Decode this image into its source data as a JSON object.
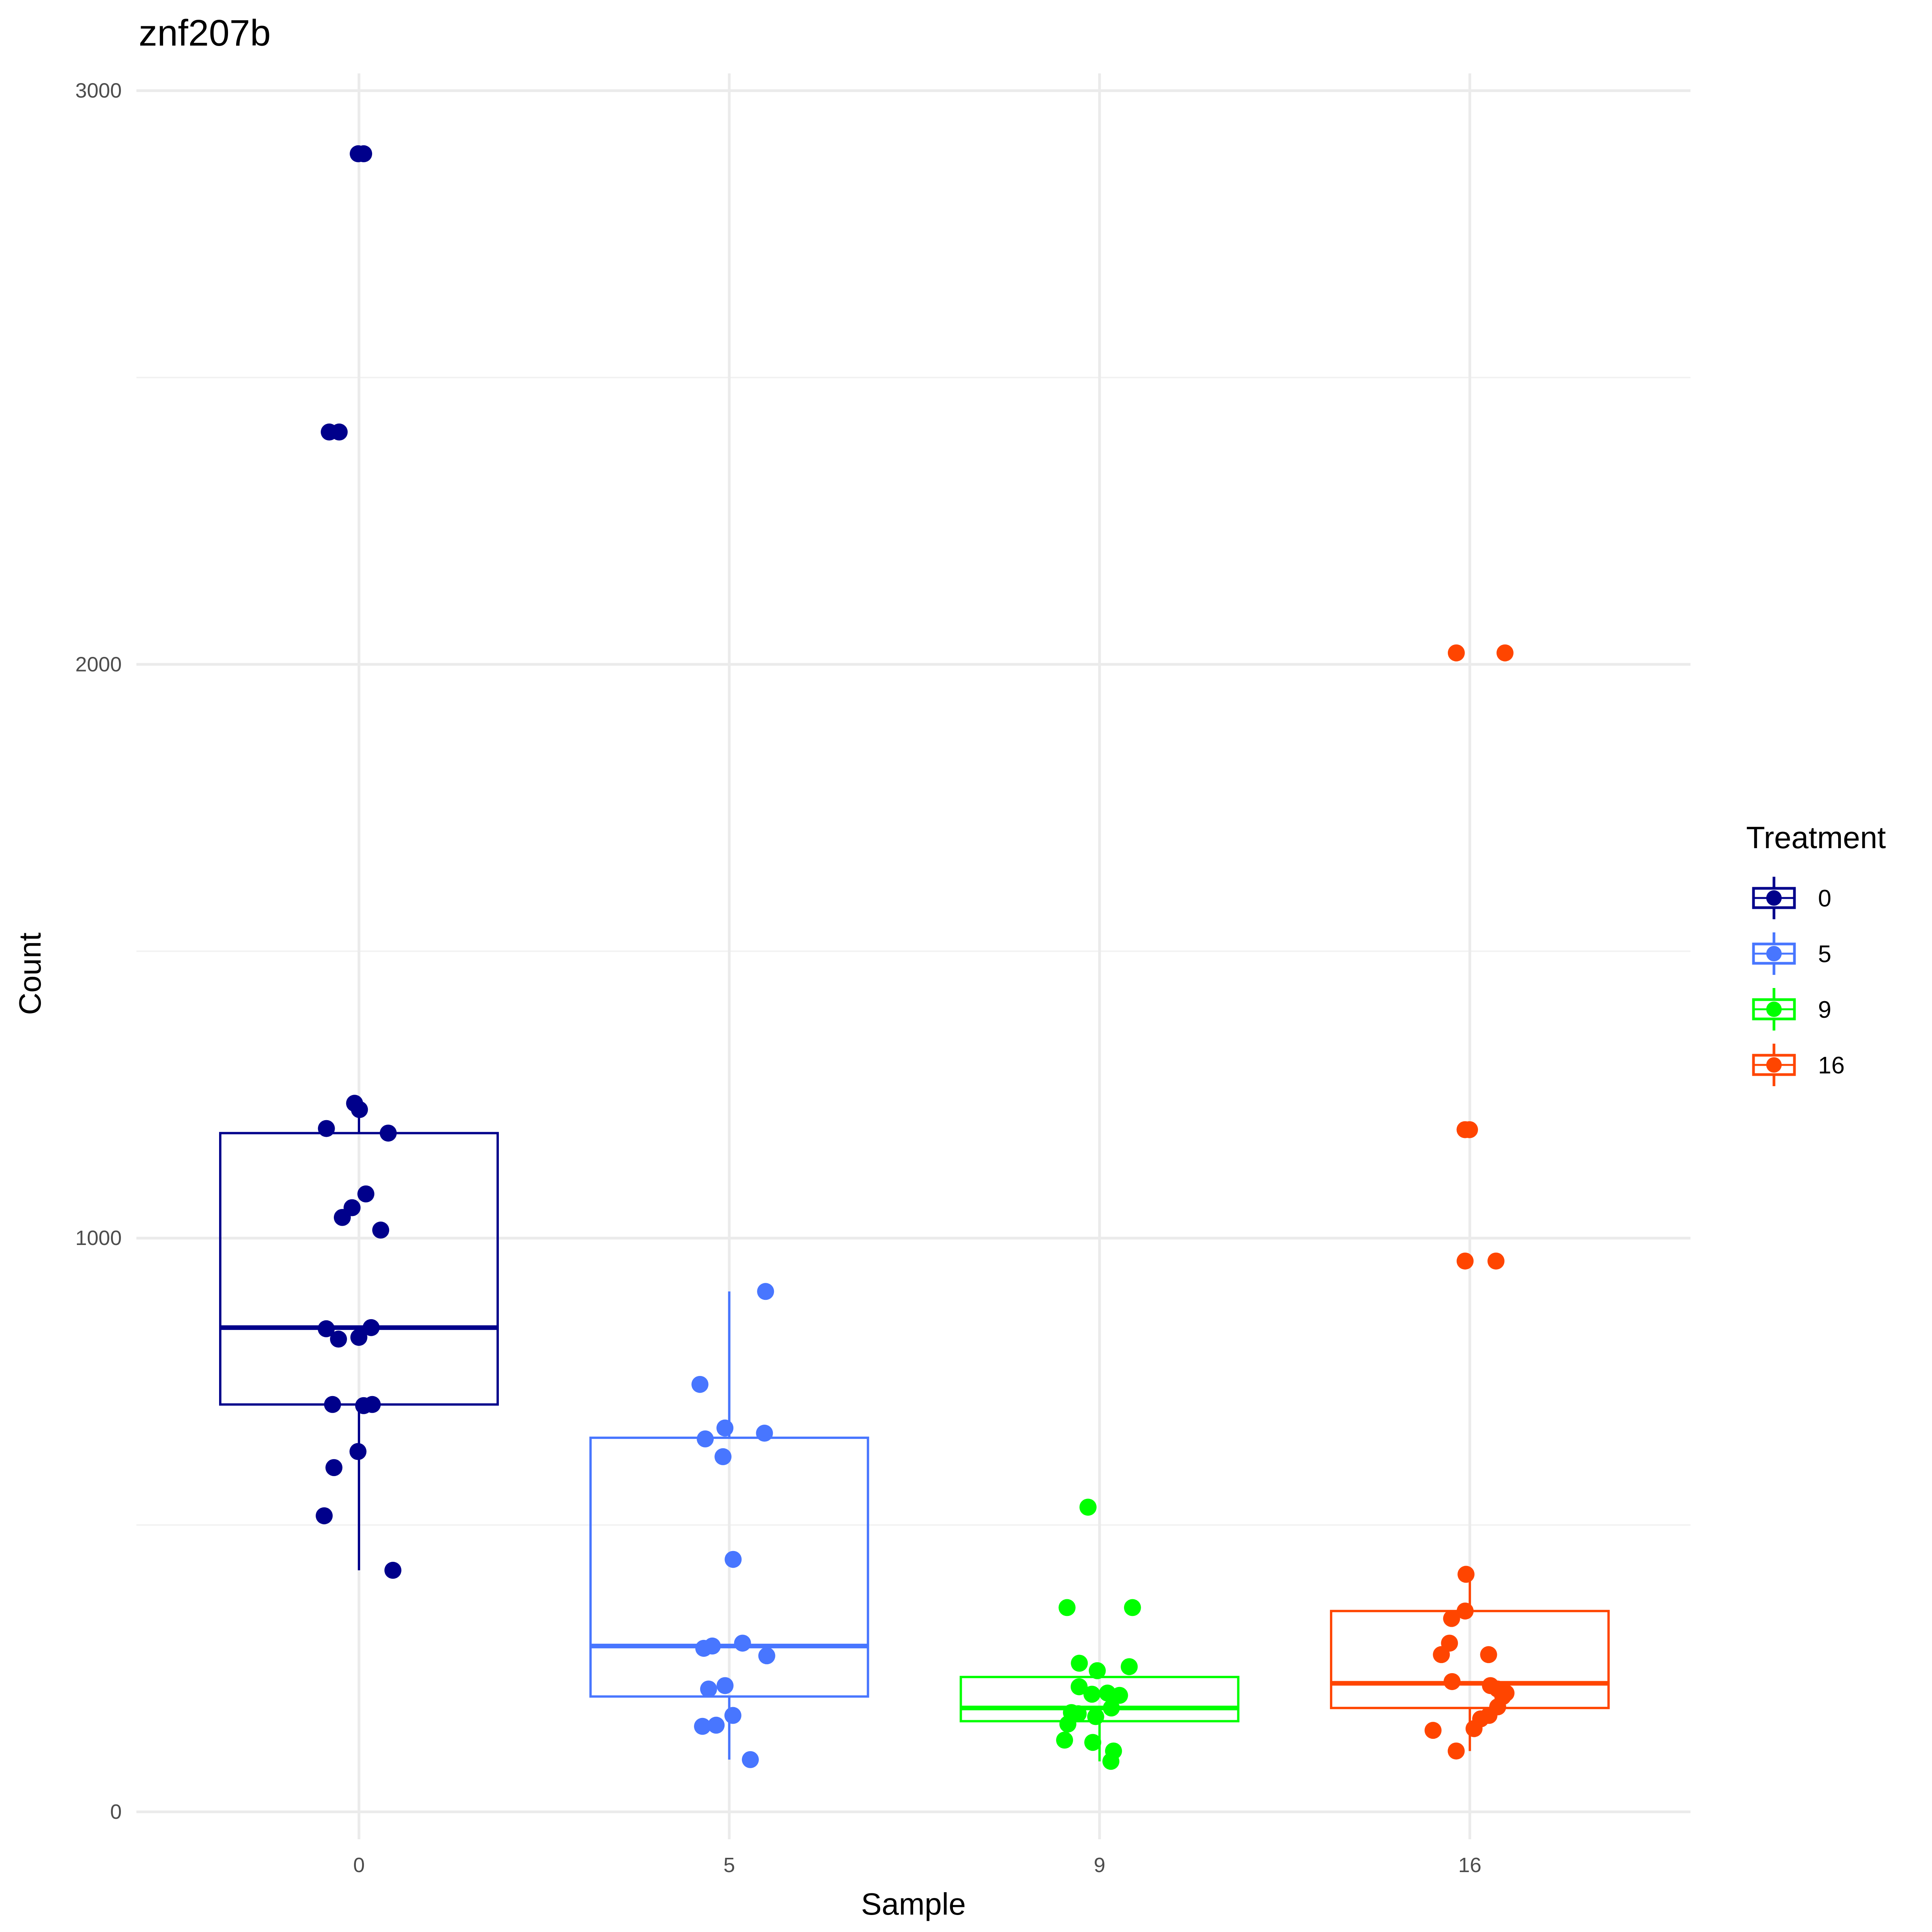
{
  "chart_data": {
    "type": "boxplot",
    "title": "znf207b",
    "xlabel": "Sample",
    "ylabel": "Count",
    "ylim": [
      -50,
      3030
    ],
    "yticks": [
      "0",
      "1000",
      "2000",
      "3000"
    ],
    "ytick_values": [
      0,
      1000,
      2000,
      3000
    ],
    "grid": true,
    "categories": [
      "0",
      "5",
      "9",
      "16"
    ],
    "legend": {
      "title": "Treatment",
      "position": "right",
      "labels": [
        "0",
        "5",
        "9",
        "16"
      ]
    },
    "series": [
      {
        "name": "0",
        "color": "#00008B",
        "box": {
          "whisker_low": 421,
          "q1": 710,
          "median": 844,
          "q3": 1183,
          "whisker_high": 1235
        },
        "points": [
          2890,
          2890,
          2405,
          2405,
          1235,
          1224,
          1191,
          1183,
          1077,
          1053,
          1036,
          1014,
          844,
          842,
          827,
          824,
          710,
          710,
          708,
          628,
          600,
          516,
          421
        ]
      },
      {
        "name": "5",
        "color": "#4876FF",
        "box": {
          "whisker_low": 91,
          "q1": 201,
          "median": 289,
          "q3": 652,
          "whisker_high": 907
        },
        "points": [
          907,
          745,
          669,
          660,
          650,
          619,
          440,
          294,
          289,
          285,
          272,
          220,
          214,
          168,
          151,
          149,
          91
        ]
      },
      {
        "name": "9",
        "color": "#00FF00",
        "box": {
          "whisker_low": 88,
          "q1": 158,
          "median": 181,
          "q3": 235,
          "whisker_high": 259
        },
        "points": [
          531,
          531,
          356,
          356,
          259,
          253,
          246,
          218,
          207,
          205,
          203,
          181,
          173,
          171,
          166,
          153,
          125,
          121,
          106,
          88
        ]
      },
      {
        "name": "16",
        "color": "#FF4500",
        "box": {
          "whisker_low": 106,
          "q1": 181,
          "median": 224,
          "q3": 350,
          "whisker_high": 414
        },
        "points": [
          2020,
          2020,
          1189,
          1189,
          960,
          960,
          414,
          350,
          337,
          294,
          274,
          274,
          227,
          220,
          214,
          207,
          201,
          183,
          168,
          162,
          145,
          142,
          106
        ]
      }
    ]
  }
}
